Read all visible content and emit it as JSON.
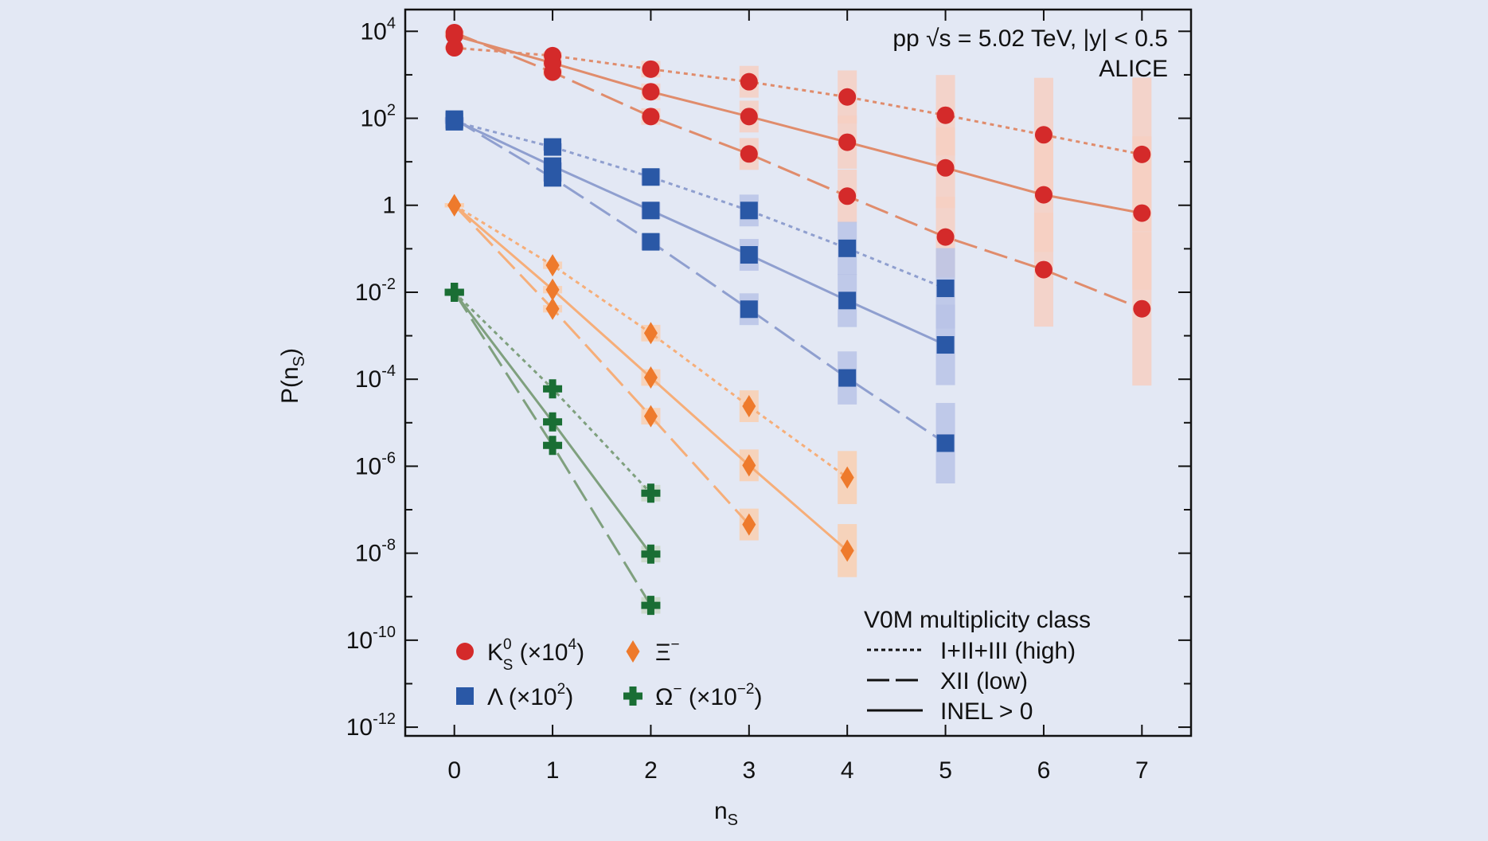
{
  "chart_data": {
    "type": "scatter",
    "title": "",
    "annotation": {
      "line1": "pp  √s = 5.02 TeV,  |y| < 0.5",
      "line2": "ALICE"
    },
    "xlabel": "n",
    "xlabel_sub": "S",
    "ylabel": "P(n",
    "ylabel_sub": "S",
    "ylabel_close": ")",
    "xlim": [
      -0.5,
      7.5
    ],
    "ylim_log10": [
      -12.2,
      4.5
    ],
    "x_ticks": [
      0,
      1,
      2,
      3,
      4,
      5,
      6,
      7
    ],
    "y_ticks": [
      {
        "exp": 4,
        "base": "10",
        "sup": "4"
      },
      {
        "exp": 2,
        "base": "10",
        "sup": "2"
      },
      {
        "exp": 0,
        "base": "1",
        "sup": ""
      },
      {
        "exp": -2,
        "base": "10",
        "sup": "-2"
      },
      {
        "exp": -4,
        "base": "10",
        "sup": "-4"
      },
      {
        "exp": -6,
        "base": "10",
        "sup": "-6"
      },
      {
        "exp": -8,
        "base": "10",
        "sup": "-8"
      },
      {
        "exp": -10,
        "base": "10",
        "sup": "-10"
      },
      {
        "exp": -12,
        "base": "10",
        "sup": "-12"
      }
    ],
    "particles": [
      {
        "name": "K0S",
        "marker": "circle",
        "color": "#d42a2a",
        "line_color": "#e08c6c",
        "band_color": "#f6cfc2",
        "series": [
          {
            "class": "high",
            "x": [
              0,
              1,
              2,
              3,
              4,
              5,
              6,
              7
            ],
            "log10_y": [
              3.62,
              3.44,
              3.13,
              2.84,
              2.49,
              2.07,
              1.62,
              1.17
            ]
          },
          {
            "class": "inel",
            "x": [
              0,
              1,
              2,
              3,
              4,
              5,
              6,
              7
            ],
            "log10_y": [
              3.9,
              3.27,
              2.61,
              2.04,
              1.45,
              0.86,
              0.24,
              -0.18
            ]
          },
          {
            "class": "low",
            "x": [
              0,
              1,
              2,
              3,
              4,
              5,
              6,
              7
            ],
            "log10_y": [
              3.97,
              3.06,
              2.04,
              1.18,
              0.21,
              -0.73,
              -1.48,
              -2.38
            ]
          }
        ]
      },
      {
        "name": "Lambda",
        "marker": "square",
        "color": "#2a58a6",
        "line_color": "#8f9fcf",
        "band_color": "#b8c3e6",
        "series": [
          {
            "class": "high",
            "x": [
              0,
              1,
              2,
              3,
              4,
              5
            ],
            "log10_y": [
              1.92,
              1.34,
              0.65,
              -0.12,
              -0.99,
              -1.91
            ]
          },
          {
            "class": "inel",
            "x": [
              0,
              1,
              2,
              3,
              4,
              5
            ],
            "log10_y": [
              1.96,
              0.9,
              -0.12,
              -1.14,
              -2.19,
              -3.21
            ]
          },
          {
            "class": "low",
            "x": [
              0,
              1,
              2,
              3,
              4,
              5
            ],
            "log10_y": [
              1.98,
              0.63,
              -0.84,
              -2.39,
              -3.97,
              -5.47
            ]
          }
        ]
      },
      {
        "name": "Xi-",
        "marker": "diamond",
        "color": "#ee7a2c",
        "line_color": "#f6ae79",
        "band_color": "#f9cfb0",
        "series": [
          {
            "class": "high",
            "x": [
              0,
              1,
              2,
              3,
              4
            ],
            "log10_y": [
              0.0,
              -1.38,
              -2.94,
              -4.62,
              -6.26
            ]
          },
          {
            "class": "inel",
            "x": [
              0,
              1,
              2,
              3,
              4
            ],
            "log10_y": [
              0.0,
              -1.94,
              -3.96,
              -5.98,
              -7.94
            ]
          },
          {
            "class": "low",
            "x": [
              0,
              1,
              2,
              3
            ],
            "log10_y": [
              0.0,
              -2.38,
              -4.85,
              -7.34
            ]
          }
        ]
      },
      {
        "name": "Omega-",
        "marker": "cross",
        "color": "#1a6e34",
        "line_color": "#7fa07e",
        "band_color": "#c8d6c4",
        "series": [
          {
            "class": "high",
            "x": [
              0,
              1,
              2
            ],
            "log10_y": [
              -2.0,
              -4.22,
              -6.62
            ]
          },
          {
            "class": "inel",
            "x": [
              0,
              1,
              2
            ],
            "log10_y": [
              -2.0,
              -4.98,
              -8.02
            ]
          },
          {
            "class": "low",
            "x": [
              0,
              1,
              2
            ],
            "log10_y": [
              -2.0,
              -5.52,
              -9.2
            ]
          }
        ]
      }
    ],
    "legend_particles": [
      {
        "marker": "circle",
        "color": "#d42a2a",
        "label": "K",
        "sup": "0",
        "sub": "S",
        "suffix": " (×10",
        "suffix_sup": "4",
        "suffix_end": ")"
      },
      {
        "marker": "diamond",
        "color": "#ee7a2c",
        "label": "Ξ",
        "sup": "−",
        "sub": "",
        "suffix": "",
        "suffix_sup": "",
        "suffix_end": ""
      },
      {
        "marker": "square",
        "color": "#2a58a6",
        "label": "Λ",
        "sup": "",
        "sub": "",
        "suffix": " (×10",
        "suffix_sup": "2",
        "suffix_end": ")"
      },
      {
        "marker": "cross",
        "color": "#1a6e34",
        "label": "Ω",
        "sup": "−",
        "sub": "",
        "suffix": " (×10",
        "suffix_sup": "−2",
        "suffix_end": ")"
      }
    ],
    "legend_classes": {
      "title": "V0M multiplicity class",
      "items": [
        {
          "class": "high",
          "label": "I+II+III (high)"
        },
        {
          "class": "low",
          "label": "XII (low)"
        },
        {
          "class": "inel",
          "label": "INEL > 0"
        }
      ]
    }
  }
}
